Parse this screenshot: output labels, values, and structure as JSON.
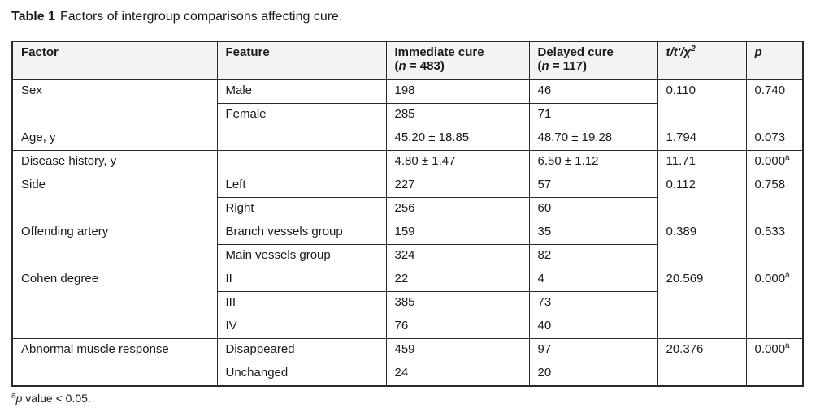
{
  "caption": {
    "label": "Table 1",
    "text": "Factors of intergroup comparisons affecting cure."
  },
  "columns": {
    "factor": "Factor",
    "feature": "Feature",
    "immediate": "Immediate cure",
    "immediate_n_label": "n",
    "immediate_n": "483",
    "delayed": "Delayed cure",
    "delayed_n_label": "n",
    "delayed_n": "117",
    "stat": "t/t'/χ",
    "stat_sup": "2",
    "p": "p"
  },
  "rows": {
    "sex": {
      "factor": "Sex",
      "stat": "0.110",
      "p": "0.740",
      "male": {
        "feature": "Male",
        "immediate": "198",
        "delayed": "46"
      },
      "female": {
        "feature": "Female",
        "immediate": "285",
        "delayed": "71"
      }
    },
    "age": {
      "factor": "Age, y",
      "feature": "",
      "immediate": "45.20 ± 18.85",
      "delayed": "48.70 ± 19.28",
      "stat": "1.794",
      "p": "0.073"
    },
    "history": {
      "factor": "Disease history, y",
      "feature": "",
      "immediate": "4.80 ± 1.47",
      "delayed": "6.50 ± 1.12",
      "stat": "11.71",
      "p": "0.000",
      "p_sup": "a"
    },
    "side": {
      "factor": "Side",
      "stat": "0.112",
      "p": "0.758",
      "left": {
        "feature": "Left",
        "immediate": "227",
        "delayed": "57"
      },
      "right": {
        "feature": "Right",
        "immediate": "256",
        "delayed": "60"
      }
    },
    "artery": {
      "factor": "Offending artery",
      "stat": "0.389",
      "p": "0.533",
      "branch": {
        "feature": "Branch vessels group",
        "immediate": "159",
        "delayed": "35"
      },
      "main": {
        "feature": "Main vessels group",
        "immediate": "324",
        "delayed": "82"
      }
    },
    "cohen": {
      "factor": "Cohen degree",
      "stat": "20.569",
      "p": "0.000",
      "p_sup": "a",
      "ii": {
        "feature": "II",
        "immediate": "22",
        "delayed": "4"
      },
      "iii": {
        "feature": "III",
        "immediate": "385",
        "delayed": "73"
      },
      "iv": {
        "feature": "IV",
        "immediate": "76",
        "delayed": "40"
      }
    },
    "amr": {
      "factor": "Abnormal muscle response",
      "stat": "20.376",
      "p": "0.000",
      "p_sup": "a",
      "disappeared": {
        "feature": "Disappeared",
        "immediate": "459",
        "delayed": "97"
      },
      "unchanged": {
        "feature": "Unchanged",
        "immediate": "24",
        "delayed": "20"
      }
    }
  },
  "footnote": {
    "sup": "a",
    "p": "p",
    "text": " value < 0.05."
  }
}
